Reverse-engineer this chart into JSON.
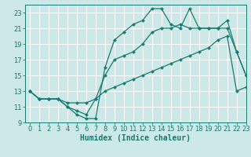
{
  "xlabel": "Humidex (Indice chaleur)",
  "bg_color": "#cce8e8",
  "line_color": "#1a7a6e",
  "grid_color": "#ffffff",
  "xlim": [
    -0.5,
    23
  ],
  "ylim": [
    9,
    24
  ],
  "xticks": [
    0,
    1,
    2,
    3,
    4,
    5,
    6,
    7,
    8,
    9,
    10,
    11,
    12,
    13,
    14,
    15,
    16,
    17,
    18,
    19,
    20,
    21,
    22,
    23
  ],
  "yticks": [
    9,
    11,
    13,
    15,
    17,
    19,
    21,
    23
  ],
  "line1_x": [
    0,
    1,
    2,
    3,
    4,
    5,
    6,
    7,
    8,
    9,
    10,
    11,
    12,
    13,
    14,
    15,
    16,
    17,
    18,
    19,
    20,
    21,
    22,
    23
  ],
  "line1_y": [
    13,
    12,
    12,
    12,
    11,
    10,
    9.5,
    9.5,
    16,
    19.5,
    20.5,
    21.5,
    22,
    23.5,
    23.5,
    21.5,
    21,
    23.5,
    21,
    21,
    21,
    22,
    18,
    15
  ],
  "line2_x": [
    0,
    1,
    2,
    3,
    4,
    5,
    6,
    7,
    8,
    9,
    10,
    11,
    12,
    13,
    14,
    15,
    16,
    17,
    18,
    19,
    20,
    21,
    22,
    23
  ],
  "line2_y": [
    13,
    12,
    12,
    12,
    11,
    10.5,
    10,
    12,
    15,
    17,
    17.5,
    18,
    19,
    20.5,
    21,
    21,
    21.5,
    21,
    21,
    21,
    21,
    21,
    18,
    15
  ],
  "line3_x": [
    0,
    1,
    2,
    3,
    4,
    5,
    6,
    7,
    8,
    9,
    10,
    11,
    12,
    13,
    14,
    15,
    16,
    17,
    18,
    19,
    20,
    21,
    22,
    23
  ],
  "line3_y": [
    13,
    12,
    12,
    12,
    11.5,
    11.5,
    11.5,
    12,
    13,
    13.5,
    14,
    14.5,
    15,
    15.5,
    16,
    16.5,
    17,
    17.5,
    18,
    18.5,
    19.5,
    20,
    13,
    13.5
  ],
  "xlabel_fontsize": 7,
  "tick_fontsize": 6,
  "linewidth": 0.9,
  "markersize": 2.2
}
